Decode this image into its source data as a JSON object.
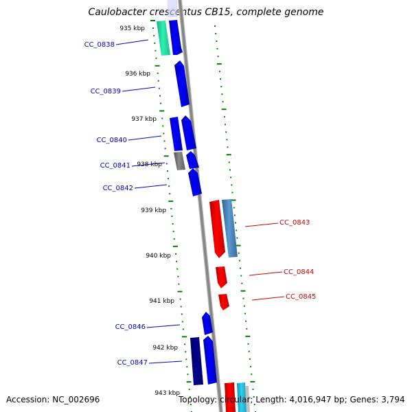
{
  "title": "Caulobacter crescentus CB15, complete genome",
  "footer": {
    "accession": "Accession: NC_002696",
    "summary": "Topology: circular; Length: 4,016,947 bp; Genes: 3,794"
  },
  "kbp_ticks": [
    "935 kbp",
    "936 kbp",
    "937 kbp",
    "938 kbp",
    "939 kbp",
    "940 kbp",
    "941 kbp",
    "942 kbp",
    "943 kbp"
  ],
  "colors": {
    "forward_gene": "#0000ee",
    "forward_gene_dark": "#00008b",
    "reverse_gene": "#ee0000",
    "steel_gene": "#4682b4",
    "teal_gene": "#20e0a0",
    "gray_gene": "#707070",
    "backbone": "#8a8a8a",
    "ticks": "#008000",
    "forward_label": "#0000cc",
    "reverse_label": "#cc0000"
  },
  "genes": [
    {
      "name": "CC_0838",
      "strand": "forward"
    },
    {
      "name": "CC_0839",
      "strand": "forward"
    },
    {
      "name": "CC_0840",
      "strand": "forward"
    },
    {
      "name": "CC_0841",
      "strand": "forward"
    },
    {
      "name": "CC_0842",
      "strand": "forward"
    },
    {
      "name": "CC_0843",
      "strand": "reverse"
    },
    {
      "name": "CC_0844",
      "strand": "reverse"
    },
    {
      "name": "CC_0845",
      "strand": "reverse"
    },
    {
      "name": "CC_0846",
      "strand": "forward"
    },
    {
      "name": "CC_0847",
      "strand": "forward"
    }
  ]
}
